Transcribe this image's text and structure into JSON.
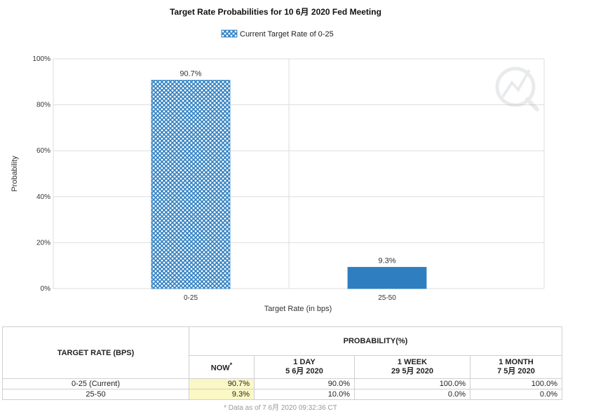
{
  "chart_data": {
    "type": "bar",
    "title": "Target Rate Probabilities for 10 6月 2020 Fed Meeting",
    "legend": {
      "label": "Current Target Rate of 0-25",
      "placement": "top-center"
    },
    "categories": [
      "0-25",
      "25-50"
    ],
    "values": [
      90.7,
      9.3
    ],
    "value_labels": [
      "90.7%",
      "9.3%"
    ],
    "bar_styles": [
      "crosshatch",
      "solid"
    ],
    "xlabel": "Target Rate (in bps)",
    "ylabel": "Probability",
    "ylim": [
      0,
      100
    ],
    "yticks": [
      0,
      20,
      40,
      60,
      80,
      100
    ],
    "ytick_labels": [
      "0%",
      "20%",
      "40%",
      "60%",
      "80%",
      "100%"
    ],
    "grid": true,
    "colors": {
      "bar": "#2f7fc0",
      "hatch_bg": "#ffffff",
      "grid": "#dddddd"
    }
  },
  "table": {
    "header_target": "TARGET RATE (BPS)",
    "header_probability": "PROBABILITY(%)",
    "columns": [
      {
        "line1": "NOW",
        "line2": "",
        "marker": "*"
      },
      {
        "line1": "1 DAY",
        "line2": "5 6月 2020"
      },
      {
        "line1": "1 WEEK",
        "line2": "29 5月 2020"
      },
      {
        "line1": "1 MONTH",
        "line2": "7 5月 2020"
      }
    ],
    "rows": [
      {
        "rate": "0-25 (Current)",
        "values": [
          "90.7%",
          "90.0%",
          "100.0%",
          "100.0%"
        ]
      },
      {
        "rate": "25-50",
        "values": [
          "9.3%",
          "10.0%",
          "0.0%",
          "0.0%"
        ]
      }
    ],
    "footnote": "* Data as of 7 6月 2020 09:32:36 CT"
  }
}
